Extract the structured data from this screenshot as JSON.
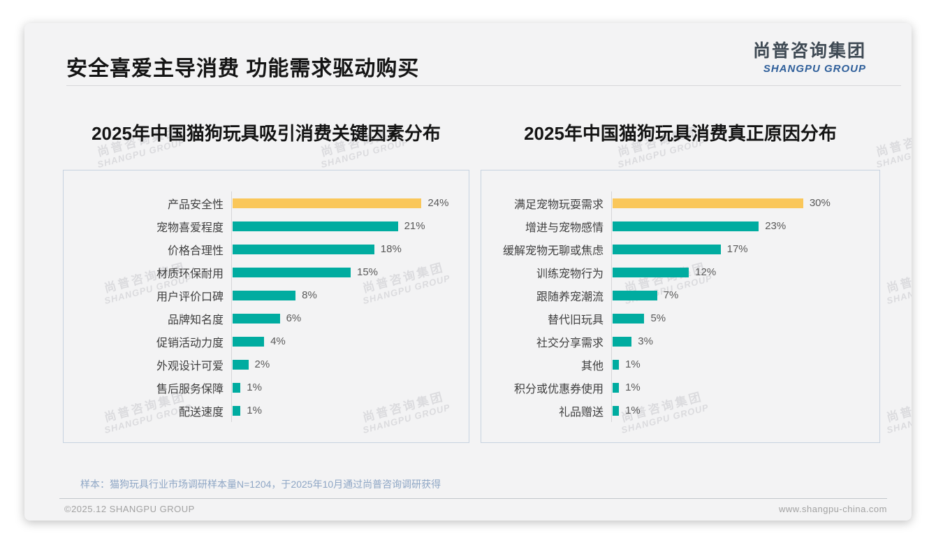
{
  "page": {
    "main_title": "安全喜爱主导消费 功能需求驱动购买",
    "logo": {
      "cn": "尚普咨询集团",
      "en": "SHANGPU GROUP"
    },
    "watermark": {
      "line1": "尚普咨询集团",
      "line2": "SHANGPU GROUP"
    },
    "footnote": "样本：猫狗玩具行业市场调研样本量N=1204，于2025年10月通过尚普咨询调研获得",
    "footer_left": "©2025.12 SHANGPU GROUP",
    "footer_right": "www.shangpu-china.com"
  },
  "colors": {
    "bar_teal": "#00aca0",
    "bar_gold": "#fac75a",
    "logo_blue": "#2f5f9a",
    "footnote_blue": "#8ea6c5"
  },
  "chart_data": [
    {
      "type": "bar",
      "orientation": "horizontal",
      "title": "2025年中国猫狗玩具吸引消费关键因素分布",
      "unit": "%",
      "xlim": [
        0,
        30
      ],
      "grid": false,
      "highlight_index": 0,
      "categories": [
        "产品安全性",
        "宠物喜爱程度",
        "价格合理性",
        "材质环保耐用",
        "用户评价口碑",
        "品牌知名度",
        "促销活动力度",
        "外观设计可爱",
        "售后服务保障",
        "配送速度"
      ],
      "values": [
        24,
        21,
        18,
        15,
        8,
        6,
        4,
        2,
        1,
        1
      ],
      "value_labels": [
        "24%",
        "21%",
        "18%",
        "15%",
        "8%",
        "6%",
        "4%",
        "2%",
        "1%",
        "1%"
      ]
    },
    {
      "type": "bar",
      "orientation": "horizontal",
      "title": "2025年中国猫狗玩具消费真正原因分布",
      "unit": "%",
      "xlim": [
        0,
        42
      ],
      "grid": false,
      "highlight_index": 0,
      "categories": [
        "满足宠物玩耍需求",
        "增进与宠物感情",
        "缓解宠物无聊或焦虑",
        "训练宠物行为",
        "跟随养宠潮流",
        "替代旧玩具",
        "社交分享需求",
        "其他",
        "积分或优惠券使用",
        "礼品赠送"
      ],
      "values": [
        30,
        23,
        17,
        12,
        7,
        5,
        3,
        1,
        1,
        1
      ],
      "value_labels": [
        "30%",
        "23%",
        "17%",
        "12%",
        "7%",
        "5%",
        "3%",
        "1%",
        "1%",
        "1%"
      ]
    }
  ]
}
